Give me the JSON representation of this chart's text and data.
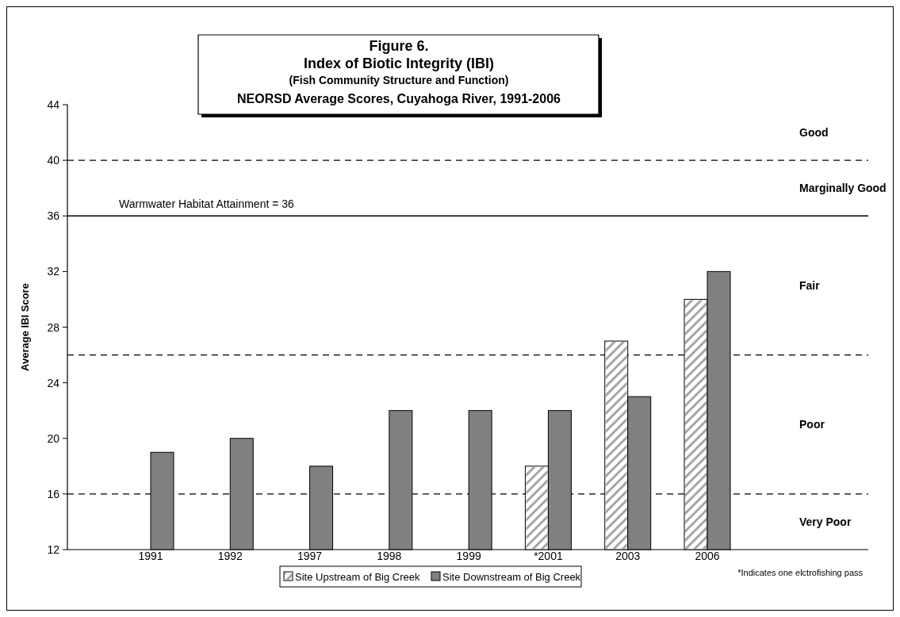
{
  "chart_data": {
    "type": "bar",
    "title": "Figure 6.\nIndex of Biotic Integrity (IBI)",
    "subtitle": "(Fish Community Structure and Function)\nNEORSD Average Scores, Cuyahoga River, 1991-2006",
    "ylabel": "Average IBI Score",
    "categories": [
      "1991",
      "1992",
      "1997",
      "1998",
      "1999",
      "*2001",
      "2003",
      "2006"
    ],
    "series": [
      {
        "name": "Site Upstream of Big Creek",
        "color": "#ffffff",
        "values": [
          null,
          null,
          null,
          null,
          null,
          18,
          27,
          30
        ]
      },
      {
        "name": "Site Downstream of Big Creek",
        "color": "#808080",
        "values": [
          19,
          20,
          18,
          22,
          22,
          22,
          23,
          32
        ]
      }
    ],
    "ylim": [
      12,
      44
    ],
    "yticks": [
      12,
      16,
      20,
      24,
      28,
      32,
      36,
      40,
      44
    ],
    "grid": false,
    "legend": "bottom",
    "ref_lines": [
      {
        "axis": "y",
        "value": 40,
        "label": null,
        "line_style": "dashed"
      },
      {
        "axis": "y",
        "value": 36,
        "label": "Warmwater Habitat Attainment = 36",
        "line_style": "solid"
      },
      {
        "axis": "y",
        "value": 26,
        "label": null,
        "line_style": "dashed"
      },
      {
        "axis": "y",
        "value": 16,
        "label": null,
        "line_style": "dashed"
      }
    ],
    "annotations": [
      "Good",
      "Marginally Good",
      "Fair",
      "Poor",
      "Very Poor",
      "*Indicates one elctrofishing pass"
    ]
  }
}
